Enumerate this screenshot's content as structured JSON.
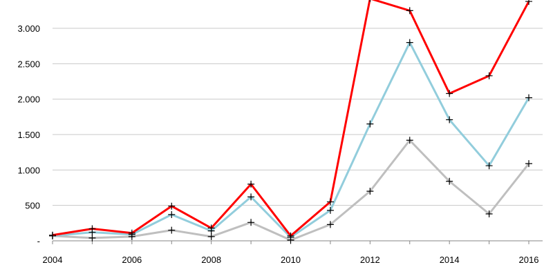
{
  "chart_data": {
    "type": "line",
    "title": "",
    "xlabel": "",
    "ylabel": "",
    "x": [
      2004,
      2005,
      2006,
      2007,
      2008,
      2009,
      2010,
      2011,
      2012,
      2013,
      2014,
      2015,
      2016
    ],
    "x_tick_labels": [
      "2004",
      "2006",
      "2008",
      "2010",
      "2012",
      "2014",
      "2016"
    ],
    "y_tick_values": [
      0,
      500,
      1000,
      1500,
      2000,
      2500,
      3000
    ],
    "y_tick_labels": [
      "-",
      "500",
      "1.000",
      "1.500",
      "2.000",
      "2.500",
      "3.000"
    ],
    "xlim": [
      2004,
      2016
    ],
    "ylim": [
      0,
      3400
    ],
    "grid": true,
    "legend": "none",
    "marker": "plus",
    "series": [
      {
        "color": "#ff0000",
        "values": [
          80,
          170,
          110,
          490,
          180,
          800,
          70,
          550,
          3420,
          3250,
          2080,
          2330,
          3380
        ]
      },
      {
        "color": "#92cddc",
        "values": [
          70,
          120,
          90,
          370,
          140,
          620,
          50,
          430,
          1650,
          2800,
          1710,
          1060,
          2020
        ]
      },
      {
        "color": "#bfbfbf",
        "values": [
          70,
          40,
          60,
          150,
          60,
          260,
          10,
          230,
          700,
          1420,
          840,
          380,
          1090
        ]
      }
    ]
  }
}
